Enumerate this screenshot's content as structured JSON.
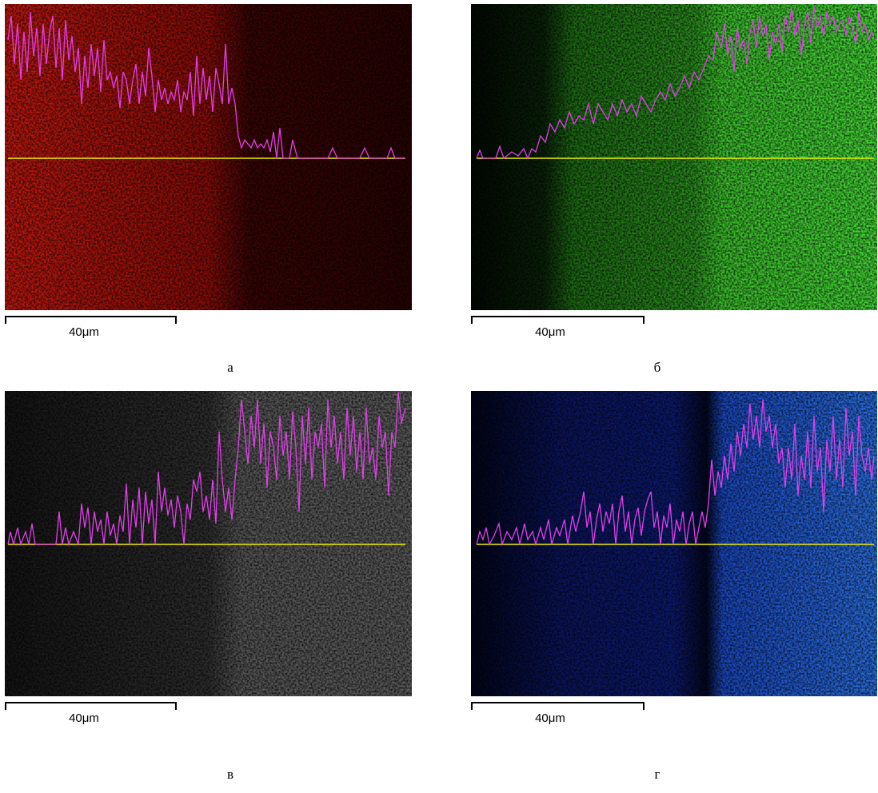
{
  "panels": [
    {
      "scale_label": "40μm",
      "caption": "а"
    },
    {
      "scale_label": "40μm",
      "caption": "б"
    },
    {
      "scale_label": "40μm",
      "caption": "в"
    },
    {
      "scale_label": "40μm",
      "caption": "г"
    }
  ]
}
